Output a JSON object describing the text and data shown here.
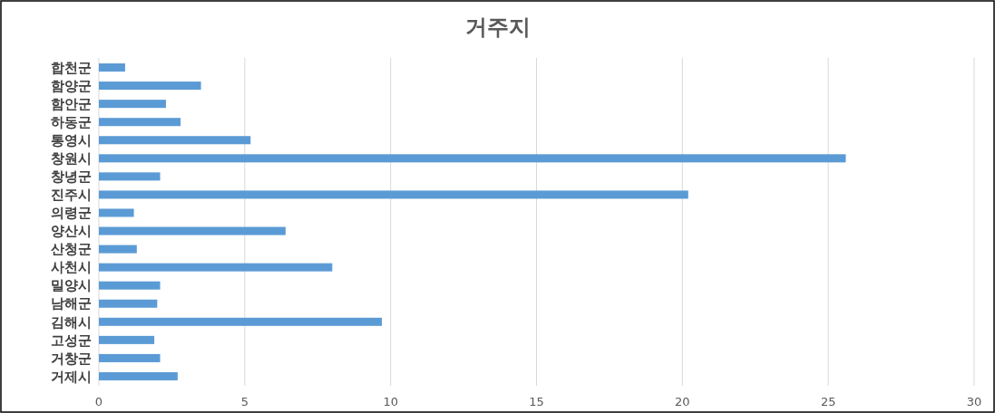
{
  "chart_data": {
    "type": "bar",
    "orientation": "horizontal",
    "title": "거주지",
    "categories": [
      "합천군",
      "함양군",
      "함안군",
      "하동군",
      "통영시",
      "창원시",
      "창녕군",
      "진주시",
      "의령군",
      "양산시",
      "산청군",
      "사천시",
      "밀양시",
      "남해군",
      "김해시",
      "고성군",
      "거창군",
      "거제시"
    ],
    "values": [
      0.9,
      3.5,
      2.3,
      2.8,
      5.2,
      25.6,
      2.1,
      20.2,
      1.2,
      6.4,
      1.3,
      8.0,
      2.1,
      2.0,
      9.7,
      1.9,
      2.1,
      2.7
    ],
    "color": "#5b9bd5",
    "xlim": [
      0,
      30
    ],
    "xticks": [
      0,
      5,
      10,
      15,
      20,
      25,
      30
    ],
    "grid": "x"
  }
}
